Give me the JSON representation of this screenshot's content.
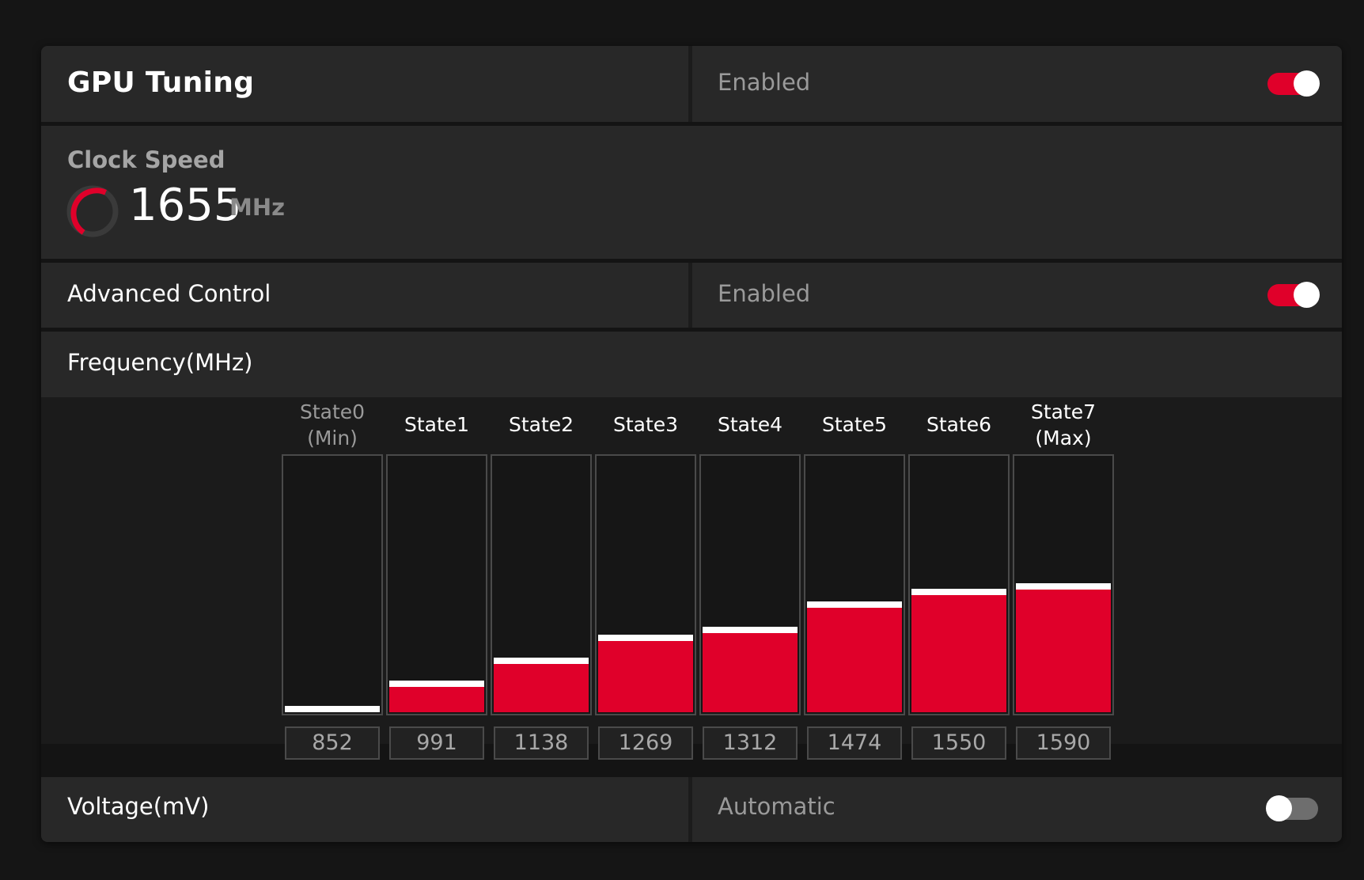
{
  "gpu_tuning": {
    "title": "GPU Tuning",
    "status": "Enabled",
    "toggle_on": true
  },
  "clock_speed": {
    "label": "Clock Speed",
    "value": "1655",
    "unit": "MHz"
  },
  "advanced_control": {
    "label": "Advanced Control",
    "status": "Enabled",
    "toggle_on": true
  },
  "frequency": {
    "label": "Frequency(MHz)",
    "states": [
      {
        "label_line1": "State0",
        "label_line2": "(Min)",
        "value": "852",
        "level": 0.0
      },
      {
        "label_line1": "State1",
        "label_line2": "",
        "value": "991",
        "level": 0.1
      },
      {
        "label_line1": "State2",
        "label_line2": "",
        "value": "1138",
        "level": 0.19
      },
      {
        "label_line1": "State3",
        "label_line2": "",
        "value": "1269",
        "level": 0.28
      },
      {
        "label_line1": "State4",
        "label_line2": "",
        "value": "1312",
        "level": 0.31
      },
      {
        "label_line1": "State5",
        "label_line2": "",
        "value": "1474",
        "level": 0.41
      },
      {
        "label_line1": "State6",
        "label_line2": "",
        "value": "1550",
        "level": 0.46
      },
      {
        "label_line1": "State7",
        "label_line2": "(Max)",
        "value": "1590",
        "level": 0.48
      }
    ]
  },
  "voltage": {
    "label": "Voltage(mV)",
    "status": "Automatic",
    "toggle_on": false
  },
  "colors": {
    "accent": "#e0002a",
    "panel": "#282828",
    "background": "#151515"
  }
}
